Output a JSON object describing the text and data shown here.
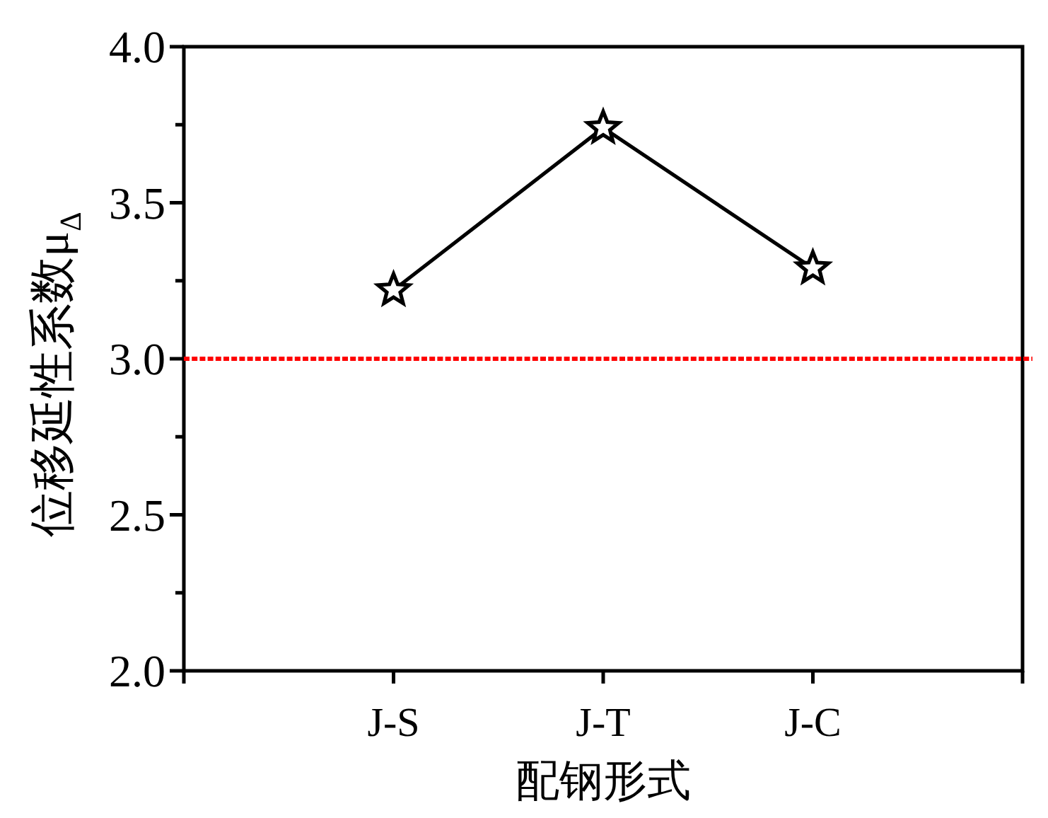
{
  "chart_data": {
    "type": "line",
    "xlabel": "配钢形式",
    "ylabel": "位移延性系数μ$_{Δ}$",
    "categories": [
      "J-S",
      "J-T",
      "J-C"
    ],
    "series": [
      {
        "color": "#000000",
        "values": [
          3.22,
          3.74,
          3.29
        ]
      }
    ],
    "ylim": [
      2,
      4
    ],
    "yticks": [
      {
        "value": 2,
        "label": "2.0"
      },
      {
        "value": 2.25,
        "label": null
      },
      {
        "value": 2.5,
        "label": "2.5"
      },
      {
        "value": 2.75,
        "label": null
      },
      {
        "value": 3,
        "label": "3.0"
      },
      {
        "value": 3.25,
        "label": null
      },
      {
        "value": 3.5,
        "label": "3.5"
      },
      {
        "value": 3.75,
        "label": null
      },
      {
        "value": 4,
        "label": "4.0"
      }
    ],
    "marker": "star",
    "line_style": "solid",
    "ref_lines": [
      {
        "axis": "y",
        "value": 3,
        "color": "#ff0000",
        "line_style": "dotted"
      }
    ]
  }
}
